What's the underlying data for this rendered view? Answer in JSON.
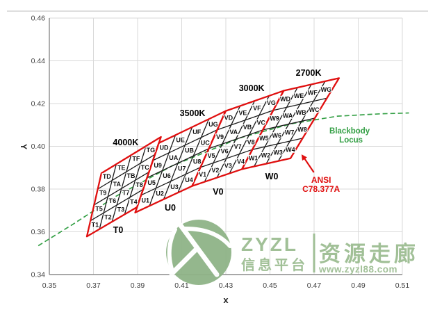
{
  "colors": {
    "red": "#e00f0f",
    "black_line": "#1a1a1a",
    "green": "#35a046",
    "grid": "#d9d9d9",
    "axis": "#8c8c8c",
    "tick_text": "#404040",
    "divider": "#c9c9c9",
    "watermark_logo": "#8fb487",
    "watermark_text": "#9cbd92"
  },
  "chart_data": {
    "type": "line",
    "title": "",
    "xlabel": "x",
    "ylabel": "Y",
    "xlim": [
      0.35,
      0.51
    ],
    "ylim": [
      0.34,
      0.46
    ],
    "x_ticks": [
      0.35,
      0.37,
      0.39,
      0.41,
      0.43,
      0.45,
      0.47,
      0.49,
      0.51
    ],
    "y_ticks": [
      0.34,
      0.36,
      0.38,
      0.4,
      0.42,
      0.44,
      0.46
    ],
    "grid": true,
    "legend_position": "none",
    "cell_suffixes": [
      "1",
      "2",
      "3",
      "4",
      "5",
      "6",
      "7",
      "8",
      "9",
      "A",
      "B",
      "C",
      "D",
      "E",
      "F",
      "G"
    ],
    "quads": [
      {
        "id": "T",
        "cct": "4000K",
        "cct_pos": [
          0.3846,
          0.4018
        ],
        "bin": "T0",
        "bin_pos": [
          0.3812,
          0.3608
        ],
        "corners": {
          "bl": [
            0.367,
            0.3578
          ],
          "br": [
            0.3898,
            0.3716
          ],
          "tr": [
            0.4006,
            0.4044
          ],
          "tl": [
            0.3736,
            0.3874
          ]
        }
      },
      {
        "id": "U",
        "cct": "3500K",
        "cct_pos": [
          0.4149,
          0.4154
        ],
        "bin": "U0",
        "bin_pos": [
          0.4048,
          0.3712
        ],
        "corners": {
          "bl": [
            0.3889,
            0.369
          ],
          "br": [
            0.4147,
            0.3814
          ],
          "tr": [
            0.4299,
            0.4165
          ],
          "tl": [
            0.3996,
            0.4015
          ]
        }
      },
      {
        "id": "V",
        "cct": "3000K",
        "cct_pos": [
          0.4417,
          0.4272
        ],
        "bin": "V0",
        "bin_pos": [
          0.4265,
          0.3787
        ],
        "corners": {
          "bl": [
            0.4147,
            0.3814
          ],
          "br": [
            0.4373,
            0.3893
          ],
          "tr": [
            0.4562,
            0.426
          ],
          "tl": [
            0.4299,
            0.4165
          ]
        }
      },
      {
        "id": "W",
        "cct": "2700K",
        "cct_pos": [
          0.4675,
          0.4343
        ],
        "bin": "W0",
        "bin_pos": [
          0.4508,
          0.3859
        ],
        "corners": {
          "bl": [
            0.4373,
            0.3893
          ],
          "br": [
            0.4593,
            0.3944
          ],
          "tr": [
            0.4813,
            0.4319
          ],
          "tl": [
            0.4562,
            0.426
          ]
        }
      }
    ],
    "blackbody_locus": {
      "label_line1": "Blackbody",
      "label_line2": "Locus",
      "label_pos": [
        0.4861,
        0.4053
      ],
      "points": [
        [
          0.345,
          0.3535
        ],
        [
          0.3608,
          0.3636
        ],
        [
          0.3805,
          0.3768
        ],
        [
          0.4053,
          0.3907
        ],
        [
          0.4369,
          0.4041
        ],
        [
          0.4599,
          0.4106
        ],
        [
          0.4806,
          0.4141
        ],
        [
          0.5,
          0.4152
        ],
        [
          0.513,
          0.4156
        ]
      ]
    },
    "annotation": {
      "line1": "ANSI",
      "line2": "C78.377A",
      "pos": [
        0.4732,
        0.3842
      ],
      "arrow_tip": [
        0.4643,
        0.3962
      ],
      "arrow_tail": [
        0.4699,
        0.3878
      ]
    }
  },
  "watermark": {
    "brand": "ZYZL",
    "tagline": "信息平台",
    "name": "资源走廊",
    "url": "www.zyzl88.com"
  }
}
